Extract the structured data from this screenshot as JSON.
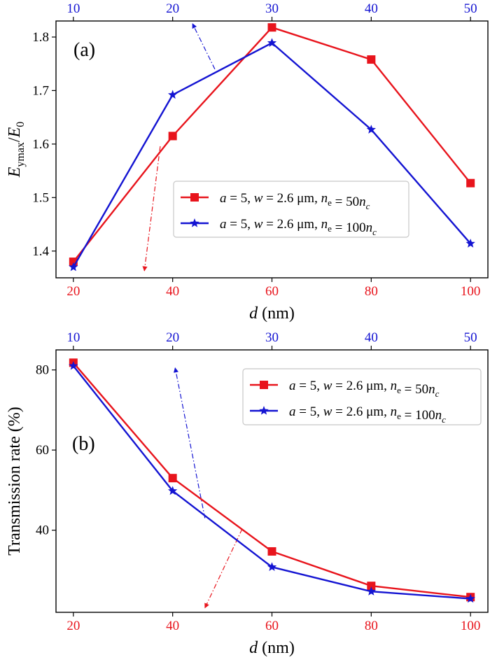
{
  "colors": {
    "red": "#e8141c",
    "blue": "#1414d2",
    "black": "#000000"
  },
  "chart_data": [
    {
      "type": "line",
      "panel_label": "(a)",
      "title": "",
      "xlabel": "d (nm)",
      "ylabel": "Eymax/E0",
      "xlim": [
        16.5,
        103.5
      ],
      "ylim": [
        1.35,
        1.83
      ],
      "x_ticks": [
        20,
        40,
        60,
        80,
        100
      ],
      "x_tick_labels": [
        "20",
        "40",
        "60",
        "80",
        "100"
      ],
      "y_ticks": [
        1.4,
        1.5,
        1.6,
        1.7,
        1.8
      ],
      "y_tick_labels": [
        "1.4",
        "1.5",
        "1.6",
        "1.7",
        "1.8"
      ],
      "top_ticks": [
        20,
        40,
        60,
        80,
        100
      ],
      "top_tick_labels": [
        "10",
        "20",
        "30",
        "40",
        "50"
      ],
      "grid": false,
      "legend_position": "center-right",
      "x": [
        20,
        40,
        60,
        80,
        100
      ],
      "series": [
        {
          "name": "a = 5, w = 2.6 μm, ne = 50nc",
          "color": "#e8141c",
          "marker": "square",
          "values": [
            1.38,
            1.615,
            1.818,
            1.758,
            1.527
          ]
        },
        {
          "name": "a = 5, w = 2.6 μm, ne = 100nc",
          "color": "#1414d2",
          "marker": "star",
          "values": [
            1.37,
            1.692,
            1.789,
            1.627,
            1.414
          ]
        }
      ],
      "annotations": [
        {
          "type": "arrow",
          "style": "dash-dot",
          "color": "#1414d2",
          "from": [
            48.5,
            1.74
          ],
          "to": [
            44.0,
            1.825
          ]
        },
        {
          "type": "arrow",
          "style": "dash-dot",
          "color": "#e8141c",
          "from": [
            37.5,
            1.596
          ],
          "to": [
            34.3,
            1.363
          ]
        }
      ]
    },
    {
      "type": "line",
      "panel_label": "(b)",
      "title": "",
      "xlabel": "d (nm)",
      "ylabel": "Transmission rate (%)",
      "xlim": [
        16.5,
        103.5
      ],
      "ylim": [
        19.5,
        85
      ],
      "x_ticks": [
        20,
        40,
        60,
        80,
        100
      ],
      "x_tick_labels": [
        "20",
        "40",
        "60",
        "80",
        "100"
      ],
      "y_ticks": [
        40,
        60,
        80
      ],
      "y_tick_labels": [
        "40",
        "60",
        "80"
      ],
      "top_ticks": [
        20,
        40,
        60,
        80,
        100
      ],
      "top_tick_labels": [
        "10",
        "20",
        "30",
        "40",
        "50"
      ],
      "grid": false,
      "legend_position": "upper-right",
      "x": [
        20,
        40,
        60,
        80,
        100
      ],
      "series": [
        {
          "name": "a = 5, w = 2.6 μm, ne = 50nc",
          "color": "#e8141c",
          "marker": "square",
          "values": [
            81.8,
            53.0,
            34.7,
            26.1,
            23.3
          ]
        },
        {
          "name": "a = 5, w = 2.6 μm, ne = 100nc",
          "color": "#1414d2",
          "marker": "star",
          "values": [
            81.0,
            49.8,
            30.8,
            24.7,
            22.9
          ]
        }
      ],
      "annotations": [
        {
          "type": "arrow",
          "style": "dash-dot",
          "color": "#1414d2",
          "from": [
            46.5,
            43.0
          ],
          "to": [
            40.5,
            80.5
          ]
        },
        {
          "type": "arrow",
          "style": "dash-dot",
          "color": "#e8141c",
          "from": [
            54.0,
            40.3
          ],
          "to": [
            46.5,
            20.6
          ]
        }
      ]
    }
  ]
}
